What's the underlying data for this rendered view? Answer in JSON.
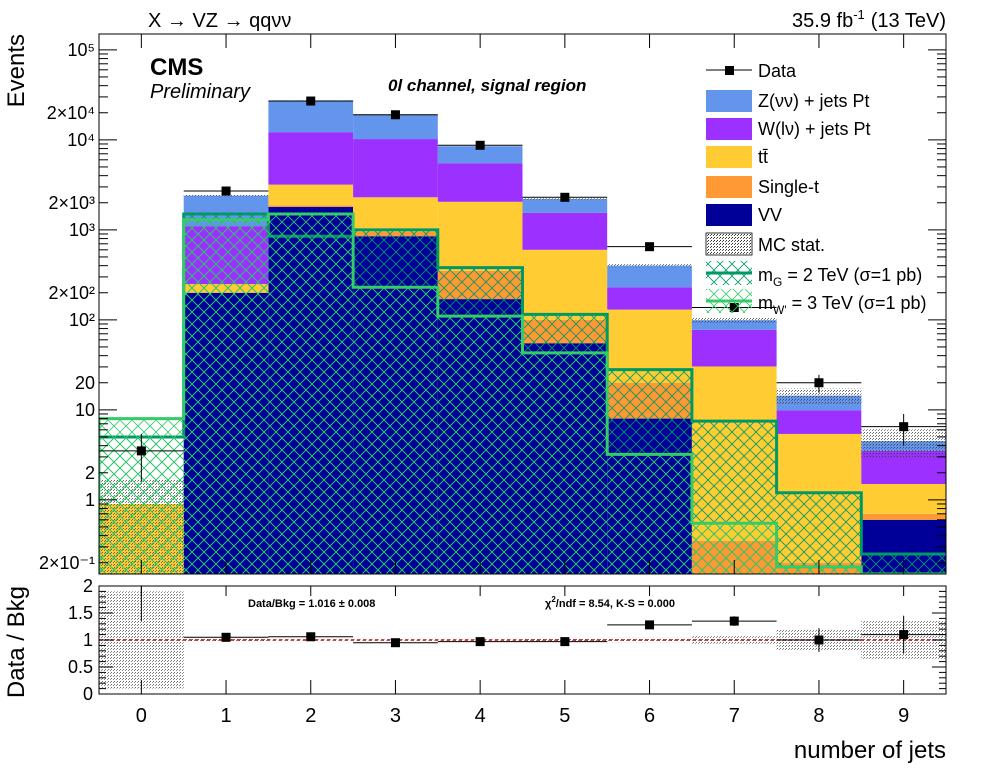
{
  "header": {
    "process": "X → VZ → qqνν",
    "lumi": "35.9 fb",
    "lumi_exp": "-1",
    "energy": "(13 TeV)",
    "experiment": "CMS",
    "status": "Preliminary",
    "region": "0l channel, signal region"
  },
  "colors": {
    "znn": "#6495ed",
    "wln": "#9b30ff",
    "ttbar": "#ffcc33",
    "single_t": "#ff9933",
    "vv": "#000099",
    "signal_g": "#009966",
    "signal_w": "#33cc66",
    "ratio_line": "#cc0000"
  },
  "chart_data": [
    {
      "type": "bar",
      "stacked": true,
      "log_y": true,
      "ylabel": "Events",
      "xlabel": "number of jets",
      "ylim": [
        0.15,
        150000
      ],
      "xlim": [
        -0.5,
        9.5
      ],
      "categories": [
        "0",
        "1",
        "2",
        "3",
        "4",
        "5",
        "6",
        "7",
        "8",
        "9"
      ],
      "y_tick_labels": [
        "2×10⁻¹",
        "1",
        "2",
        "10",
        "20",
        "10²",
        "2×10²",
        "10³",
        "2×10³",
        "10⁴",
        "2×10⁴",
        "10⁵"
      ],
      "series": [
        {
          "name": "VV",
          "color_key": "vv",
          "values": [
            0.0,
            200,
            1800,
            850,
            170,
            55,
            8,
            0.0,
            0.0,
            0.6
          ]
        },
        {
          "name": "Single-t",
          "color_key": "single_t",
          "values": [
            0.0,
            0.0,
            80,
            100,
            180,
            45,
            12,
            0.35,
            0.2,
            0.1
          ]
        },
        {
          "name": "tt̄",
          "color_key": "ttbar",
          "values": [
            0.9,
            50,
            1300,
            1350,
            1700,
            500,
            110,
            30,
            5.2,
            0.8
          ]
        },
        {
          "name": "W(lν) + jets Pt",
          "color_key": "wln",
          "values": [
            0.0,
            850,
            9000,
            7900,
            3450,
            950,
            100,
            47,
            4.5,
            2.0
          ]
        },
        {
          "name": "Z(νν) + jets Pt",
          "color_key": "znn",
          "values": [
            0.0,
            1300,
            15000,
            8700,
            3000,
            650,
            170,
            22,
            4.5,
            1.0
          ]
        }
      ],
      "data": {
        "name": "Data",
        "values": [
          3.5,
          2700,
          27000,
          19000,
          8700,
          2300,
          650,
          137,
          20,
          6.5
        ],
        "errors": [
          1.9,
          52,
          164,
          138,
          93,
          48,
          25,
          12,
          4.5,
          2.5
        ]
      },
      "mc_stat": {
        "name": "MC stat."
      },
      "signals": [
        {
          "name": "m_G = 2 TeV (σ=1 pb)",
          "label_main": "m",
          "label_sub": "G",
          "label_rest": " = 2 TeV (σ=1 pb)",
          "color_key": "signal_g",
          "hatch": true,
          "values": [
            5,
            1500,
            850,
            1000,
            380,
            115,
            28,
            7.5,
            1.2,
            0.25
          ]
        },
        {
          "name": "m_W' = 3 TeV (σ=1 pb)",
          "label_main": "m",
          "label_sub": "W'",
          "label_rest": " = 3 TeV (σ=1 pb)",
          "color_key": "signal_w",
          "hatch": true,
          "values": [
            8,
            1300,
            1500,
            230,
            110,
            43,
            3.2,
            0.55,
            0.18,
            0.15
          ]
        }
      ]
    },
    {
      "type": "scatter",
      "ylabel": "Data / Bkg",
      "xlabel": "number of jets",
      "ylim": [
        0,
        2
      ],
      "xlim": [
        -0.5,
        9.5
      ],
      "y_tick_labels": [
        "0",
        "0.5",
        "1",
        "1.5",
        "2"
      ],
      "reference_line": 1.0,
      "x": [
        0,
        1,
        2,
        3,
        4,
        5,
        6,
        7,
        8,
        9
      ],
      "values": [
        1.7,
        1.05,
        1.06,
        0.95,
        0.97,
        0.97,
        1.28,
        1.35,
        1.0,
        1.1
      ],
      "errors": [
        0.35,
        0.03,
        0.02,
        0.02,
        0.02,
        0.03,
        0.06,
        0.09,
        0.22,
        0.35
      ],
      "mc_stat_band": [
        0.9,
        0.02,
        0.01,
        0.01,
        0.01,
        0.02,
        0.04,
        0.07,
        0.2,
        0.35
      ],
      "annotations": {
        "ratio_text": "Data/Bkg = 1.016 ± 0.008",
        "chi2_prefix": "χ",
        "chi2_exp": "2",
        "chi2_rest": "/ndf = 8.54,   K-S = 0.000"
      }
    }
  ]
}
